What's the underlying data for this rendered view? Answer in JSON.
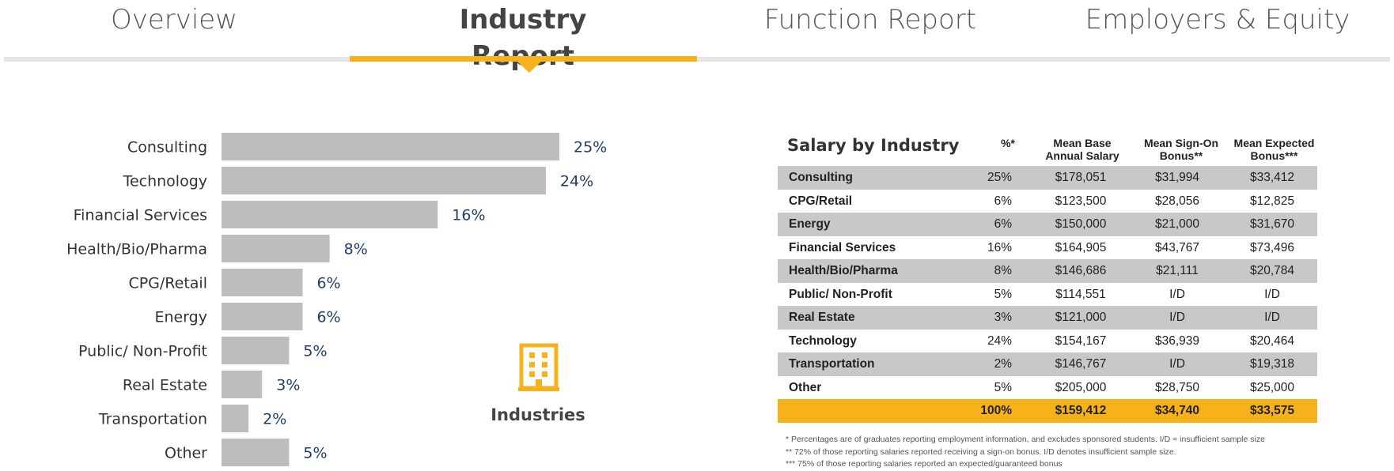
{
  "tabs": [
    {
      "label": "Overview"
    },
    {
      "label": "Industry Report"
    },
    {
      "label": "Function Report"
    },
    {
      "label": "Employers & Equity"
    }
  ],
  "chart_data": {
    "type": "bar",
    "orientation": "horizontal",
    "categories": [
      "Consulting",
      "Technology",
      "Financial Services",
      "Health/Bio/Pharma",
      "CPG/Retail",
      "Energy",
      "Public/ Non-Profit",
      "Real Estate",
      "Transportation",
      "Other"
    ],
    "values": [
      25,
      24,
      16,
      8,
      6,
      6,
      5,
      3,
      2,
      5
    ],
    "value_suffix": "%",
    "bar_color": "#bdbdbd",
    "label_color": "#1f3e6b",
    "title": "",
    "xlabel": "",
    "ylabel": "",
    "xlim": [
      0,
      25
    ]
  },
  "industries": {
    "label": "Industries",
    "icon": "building-icon",
    "icon_color": "#f6b11b"
  },
  "table": {
    "title": "Salary by Industry",
    "headers": [
      "%*",
      "Mean Base\nAnnual Salary",
      "Mean Sign-On\nBonus**",
      "Mean Expected\nBonus***"
    ],
    "rows": [
      [
        "Consulting",
        "25%",
        "$178,051",
        "$31,994",
        "$33,412"
      ],
      [
        "CPG/Retail",
        "6%",
        "$123,500",
        "$28,056",
        "$12,825"
      ],
      [
        "Energy",
        "6%",
        "$150,000",
        "$21,000",
        "$31,670"
      ],
      [
        "Financial Services",
        "16%",
        "$164,905",
        "$43,767",
        "$73,496"
      ],
      [
        "Health/Bio/Pharma",
        "8%",
        "$146,686",
        "$21,111",
        "$20,784"
      ],
      [
        "Public/ Non-Profit",
        "5%",
        "$114,551",
        "I/D",
        "I/D"
      ],
      [
        "Real Estate",
        "3%",
        "$121,000",
        "I/D",
        "I/D"
      ],
      [
        "Technology",
        "24%",
        "$154,167",
        "$36,939",
        "$20,464"
      ],
      [
        "Transportation",
        "2%",
        "$146,767",
        "I/D",
        "$19,318"
      ],
      [
        "Other",
        "5%",
        "$205,000",
        "$28,750",
        "$25,000"
      ]
    ],
    "total": [
      "",
      "100%",
      "$159,412",
      "$34,740",
      "$33,575"
    ],
    "footnotes": [
      "* Percentages are of graduates reporting employment information, and excludes sponsored students. I/D = insufficient sample size",
      "** 72% of those reporting salaries reported receiving a sign-on bonus. I/D denotes insufficient sample size.",
      "*** 75% of those reporting salaries reported an expected/guaranteed bonus"
    ],
    "shade_color": "#c8c8c8",
    "total_color": "#f6b11b"
  }
}
